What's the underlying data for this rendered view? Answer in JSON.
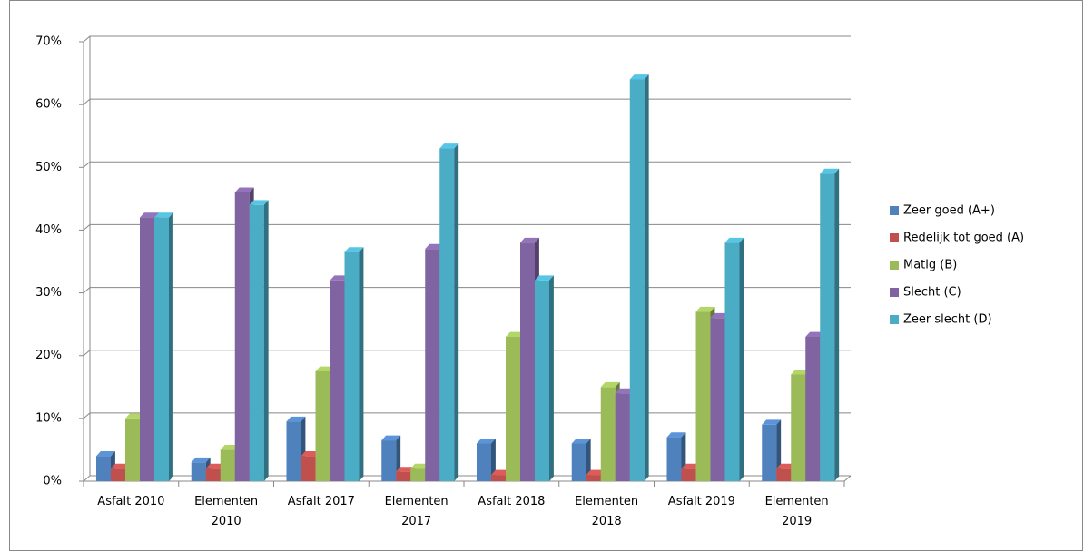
{
  "chart_data": {
    "type": "bar3d",
    "categories": [
      "Asfalt 2010",
      "Elementen 2010",
      "Asfalt 2017",
      "Elementen 2017",
      "Asfalt 2018",
      "Elementen 2018",
      "Asfalt 2019",
      "Elementen 2019"
    ],
    "series": [
      {
        "name": "Zeer goed (A+)",
        "color": "#4f81bd",
        "values": [
          4,
          3,
          9.5,
          6.5,
          6,
          6,
          7,
          9
        ]
      },
      {
        "name": "Redelijk tot goed (A)",
        "color": "#c0504d",
        "values": [
          2,
          2,
          4,
          1.5,
          1,
          1,
          2,
          2
        ]
      },
      {
        "name": "Matig (B)",
        "color": "#9bbb59",
        "values": [
          10,
          5,
          17.5,
          2,
          23,
          15,
          27,
          17
        ]
      },
      {
        "name": "Slecht (C)",
        "color": "#8064a2",
        "values": [
          42,
          46,
          32,
          37,
          38,
          14,
          26,
          23
        ]
      },
      {
        "name": "Zeer slecht (D)",
        "color": "#4bacc6",
        "values": [
          42,
          44,
          36.5,
          53,
          32,
          64,
          38,
          49
        ]
      }
    ],
    "ylim": [
      0,
      70
    ],
    "yticks": [
      {
        "value": 0,
        "label": "0%"
      },
      {
        "value": 10,
        "label": "10%"
      },
      {
        "value": 20,
        "label": "20%"
      },
      {
        "value": 30,
        "label": "30%"
      },
      {
        "value": 40,
        "label": "40%"
      },
      {
        "value": 50,
        "label": "50%"
      },
      {
        "value": 60,
        "label": "60%"
      },
      {
        "value": 70,
        "label": "70%"
      }
    ],
    "grid": true,
    "legend": "right"
  }
}
